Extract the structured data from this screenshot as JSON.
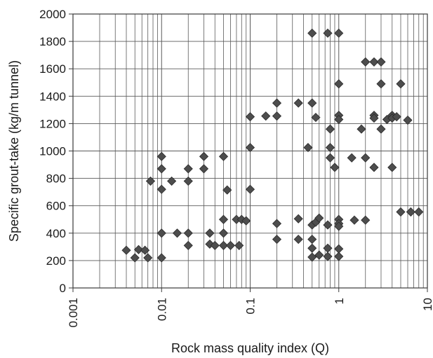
{
  "chart_data": {
    "type": "scatter",
    "xlabel": "Rock mass quality index (Q)",
    "ylabel": "Specific grout-take (kg/m tunnel)",
    "xscale": "log",
    "xlim": [
      0.001,
      10
    ],
    "ylim": [
      0,
      2000
    ],
    "xticks": [
      0.001,
      0.01,
      0.1,
      1,
      10
    ],
    "xtick_labels": [
      "0.001",
      "0.01",
      "0.1",
      "1",
      "10"
    ],
    "yticks": [
      0,
      200,
      400,
      600,
      800,
      1000,
      1200,
      1400,
      1600,
      1800,
      2000
    ],
    "ytick_labels": [
      "0",
      "200",
      "400",
      "600",
      "800",
      "1000",
      "1200",
      "1400",
      "1600",
      "1800",
      "2000"
    ],
    "grid": true,
    "marker": "diamond",
    "marker_color": "#4d4d4d",
    "points": [
      [
        0.004,
        275
      ],
      [
        0.005,
        220
      ],
      [
        0.0055,
        280
      ],
      [
        0.0065,
        275
      ],
      [
        0.007,
        220
      ],
      [
        0.0075,
        780
      ],
      [
        0.01,
        960
      ],
      [
        0.01,
        870
      ],
      [
        0.01,
        720
      ],
      [
        0.01,
        400
      ],
      [
        0.01,
        220
      ],
      [
        0.013,
        780
      ],
      [
        0.015,
        400
      ],
      [
        0.02,
        870
      ],
      [
        0.02,
        780
      ],
      [
        0.02,
        400
      ],
      [
        0.02,
        310
      ],
      [
        0.03,
        960
      ],
      [
        0.03,
        870
      ],
      [
        0.035,
        400
      ],
      [
        0.035,
        320
      ],
      [
        0.04,
        310
      ],
      [
        0.05,
        960
      ],
      [
        0.05,
        500
      ],
      [
        0.05,
        400
      ],
      [
        0.05,
        310
      ],
      [
        0.055,
        715
      ],
      [
        0.06,
        310
      ],
      [
        0.07,
        500
      ],
      [
        0.075,
        310
      ],
      [
        0.08,
        500
      ],
      [
        0.09,
        490
      ],
      [
        0.1,
        1250
      ],
      [
        0.1,
        1025
      ],
      [
        0.1,
        720
      ],
      [
        0.15,
        1255
      ],
      [
        0.2,
        1350
      ],
      [
        0.2,
        1255
      ],
      [
        0.2,
        470
      ],
      [
        0.2,
        355
      ],
      [
        0.35,
        1350
      ],
      [
        0.35,
        505
      ],
      [
        0.35,
        355
      ],
      [
        0.45,
        1025
      ],
      [
        0.5,
        1860
      ],
      [
        0.5,
        1350
      ],
      [
        0.5,
        460
      ],
      [
        0.5,
        355
      ],
      [
        0.5,
        290
      ],
      [
        0.5,
        225
      ],
      [
        0.55,
        1245
      ],
      [
        0.55,
        480
      ],
      [
        0.6,
        510
      ],
      [
        0.6,
        240
      ],
      [
        0.75,
        1860
      ],
      [
        0.75,
        460
      ],
      [
        0.75,
        290
      ],
      [
        0.75,
        230
      ],
      [
        0.8,
        1160
      ],
      [
        0.8,
        1025
      ],
      [
        0.8,
        950
      ],
      [
        0.9,
        880
      ],
      [
        1.0,
        1860
      ],
      [
        1.0,
        1490
      ],
      [
        1.0,
        1260
      ],
      [
        1.0,
        1230
      ],
      [
        1.0,
        500
      ],
      [
        1.0,
        470
      ],
      [
        1.0,
        450
      ],
      [
        1.0,
        285
      ],
      [
        1.0,
        230
      ],
      [
        1.4,
        950
      ],
      [
        1.5,
        495
      ],
      [
        1.8,
        1160
      ],
      [
        2.0,
        1650
      ],
      [
        2.0,
        950
      ],
      [
        2.0,
        495
      ],
      [
        2.5,
        1650
      ],
      [
        2.5,
        1260
      ],
      [
        2.5,
        1240
      ],
      [
        2.5,
        880
      ],
      [
        3.0,
        1650
      ],
      [
        3.0,
        1490
      ],
      [
        3.0,
        1160
      ],
      [
        3.5,
        1230
      ],
      [
        4.0,
        1260
      ],
      [
        4.0,
        1240
      ],
      [
        4.0,
        880
      ],
      [
        4.5,
        1250
      ],
      [
        5.0,
        1490
      ],
      [
        5.0,
        555
      ],
      [
        6.0,
        1225
      ],
      [
        6.5,
        555
      ],
      [
        8.0,
        555
      ]
    ]
  }
}
